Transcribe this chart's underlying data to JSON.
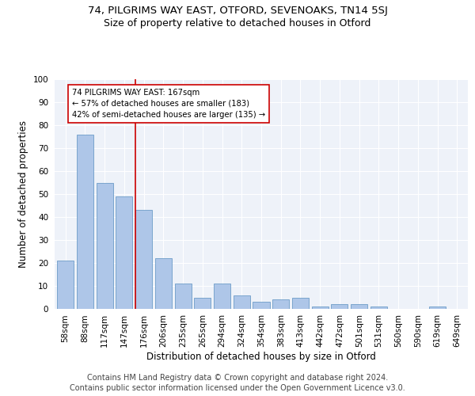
{
  "title_line1": "74, PILGRIMS WAY EAST, OTFORD, SEVENOAKS, TN14 5SJ",
  "title_line2": "Size of property relative to detached houses in Otford",
  "xlabel": "Distribution of detached houses by size in Otford",
  "ylabel": "Number of detached properties",
  "categories": [
    "58sqm",
    "88sqm",
    "117sqm",
    "147sqm",
    "176sqm",
    "206sqm",
    "235sqm",
    "265sqm",
    "294sqm",
    "324sqm",
    "354sqm",
    "383sqm",
    "413sqm",
    "442sqm",
    "472sqm",
    "501sqm",
    "531sqm",
    "560sqm",
    "590sqm",
    "619sqm",
    "649sqm"
  ],
  "values": [
    21,
    76,
    55,
    49,
    43,
    22,
    11,
    5,
    11,
    6,
    3,
    4,
    5,
    1,
    2,
    2,
    1,
    0,
    0,
    1,
    0
  ],
  "bar_color": "#aec6e8",
  "bar_edge_color": "#5a8fc0",
  "vline_x_index": 4,
  "vline_color": "#cc0000",
  "annotation_text": "74 PILGRIMS WAY EAST: 167sqm\n← 57% of detached houses are smaller (183)\n42% of semi-detached houses are larger (135) →",
  "annotation_box_color": "#ffffff",
  "annotation_box_edge": "#cc0000",
  "ylim": [
    0,
    100
  ],
  "yticks": [
    0,
    10,
    20,
    30,
    40,
    50,
    60,
    70,
    80,
    90,
    100
  ],
  "footer_line1": "Contains HM Land Registry data © Crown copyright and database right 2024.",
  "footer_line2": "Contains public sector information licensed under the Open Government Licence v3.0.",
  "bg_color": "#eef2f9",
  "grid_color": "#ffffff",
  "title_fontsize": 9.5,
  "subtitle_fontsize": 9,
  "label_fontsize": 8.5,
  "tick_fontsize": 7.5,
  "footer_fontsize": 7
}
